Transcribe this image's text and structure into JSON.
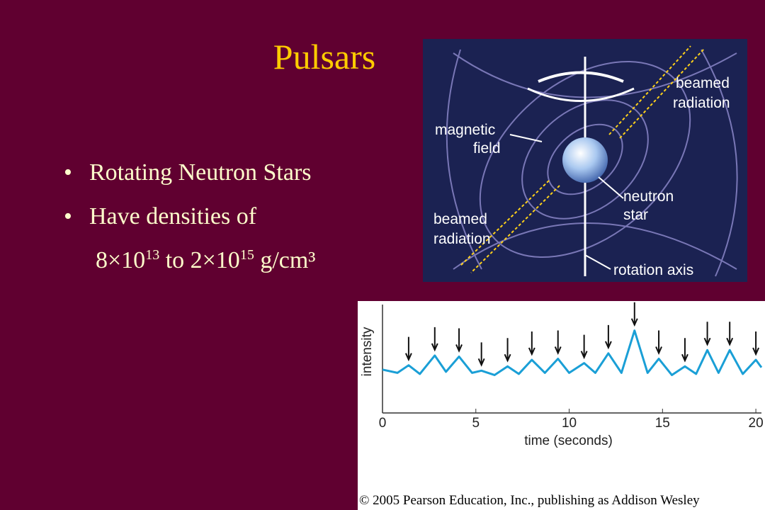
{
  "slide": {
    "title": "Pulsars",
    "bullets": [
      "Rotating Neutron Stars",
      "Have densities of"
    ],
    "density": {
      "base1": "8×10",
      "exp1": "13",
      "mid": " to 2×10",
      "exp2": "15",
      "unit": " g/cm³"
    },
    "copyright": "© 2005 Pearson Education, Inc., publishing as Addison Wesley"
  },
  "diagram": {
    "labels": {
      "magnetic_field": [
        "magnetic",
        "field"
      ],
      "beamed_top": [
        "beamed",
        "radiation"
      ],
      "beamed_bottom": [
        "beamed",
        "radiation"
      ],
      "neutron_star": [
        "neutron",
        "star"
      ],
      "rotation_axis": "rotation axis"
    }
  },
  "chart_data": {
    "type": "line",
    "x_label": "time (seconds)",
    "y_label": "intensity",
    "x": [
      0,
      0.8,
      1.4,
      2.0,
      2.8,
      3.4,
      4.1,
      4.8,
      5.3,
      6.0,
      6.7,
      7.3,
      8.0,
      8.7,
      9.4,
      10.0,
      10.8,
      11.4,
      12.1,
      12.8,
      13.5,
      14.2,
      14.8,
      15.5,
      16.2,
      16.8,
      17.4,
      18.0,
      18.6,
      19.3,
      20.0,
      20.3
    ],
    "series": [
      {
        "name": "intensity",
        "color": "#1a9fd6",
        "values": [
          4.0,
          3.7,
          4.4,
          3.6,
          5.3,
          3.8,
          5.2,
          3.7,
          3.9,
          3.5,
          4.3,
          3.6,
          4.9,
          3.7,
          5.0,
          3.7,
          4.6,
          3.7,
          5.5,
          3.7,
          7.6,
          3.7,
          5.0,
          3.5,
          4.3,
          3.6,
          5.8,
          3.7,
          5.8,
          3.6,
          4.9,
          4.2
        ]
      }
    ],
    "pulse_times": [
      1.4,
      2.8,
      4.1,
      5.3,
      6.7,
      8.0,
      9.4,
      10.8,
      12.1,
      13.5,
      14.8,
      16.2,
      17.4,
      18.6,
      20.0
    ],
    "xlim": [
      0,
      20.3
    ],
    "ylim": [
      0,
      10
    ],
    "xticks": [
      0,
      5,
      10,
      15,
      20
    ]
  }
}
